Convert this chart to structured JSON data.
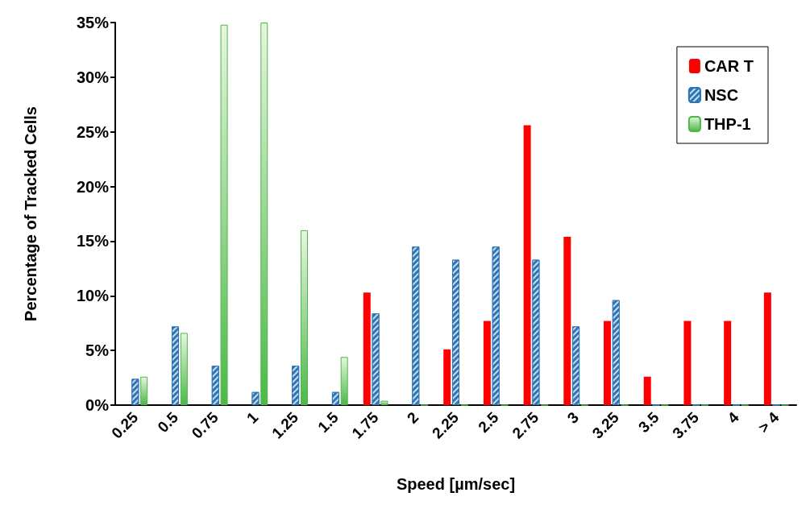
{
  "chart_data": {
    "type": "bar",
    "xlabel": "Speed [µm/sec]",
    "ylabel": "Percentage of Tracked Cells",
    "categories": [
      "0.25",
      "0.5",
      "0.75",
      "1",
      "1.25",
      "1.5",
      "1.75",
      "2",
      "2.25",
      "2.5",
      "2.75",
      "3",
      "3.25",
      "3.5",
      "3.75",
      "4",
      "> 4"
    ],
    "series": [
      {
        "name": "CAR T",
        "color": "#ff0000",
        "values": [
          0,
          0,
          0,
          0,
          0,
          0,
          10.3,
          0,
          5.1,
          7.7,
          25.6,
          15.4,
          7.7,
          2.6,
          7.7,
          7.7,
          10.3
        ]
      },
      {
        "name": "NSC",
        "color": "#2e75b6",
        "values": [
          2.4,
          7.2,
          3.6,
          1.2,
          3.6,
          1.2,
          8.4,
          14.5,
          13.3,
          14.5,
          13.3,
          7.2,
          9.6,
          0,
          0,
          0,
          0
        ]
      },
      {
        "name": "THP-1",
        "color": "#4cb848",
        "values": [
          2.6,
          6.6,
          34.8,
          35.0,
          16.0,
          4.4,
          0.4,
          0,
          0,
          0,
          0,
          0,
          0,
          0,
          0,
          0,
          0
        ]
      }
    ],
    "ylim": [
      0,
      35
    ],
    "yticks": [
      {
        "value": 0,
        "label": "0%"
      },
      {
        "value": 5,
        "label": "5%"
      },
      {
        "value": 10,
        "label": "10%"
      },
      {
        "value": 15,
        "label": "15%"
      },
      {
        "value": 20,
        "label": "20%"
      },
      {
        "value": 25,
        "label": "25%"
      },
      {
        "value": 30,
        "label": "30%"
      },
      {
        "value": 35,
        "label": "35%"
      }
    ],
    "grid": false,
    "legend": "top right"
  }
}
